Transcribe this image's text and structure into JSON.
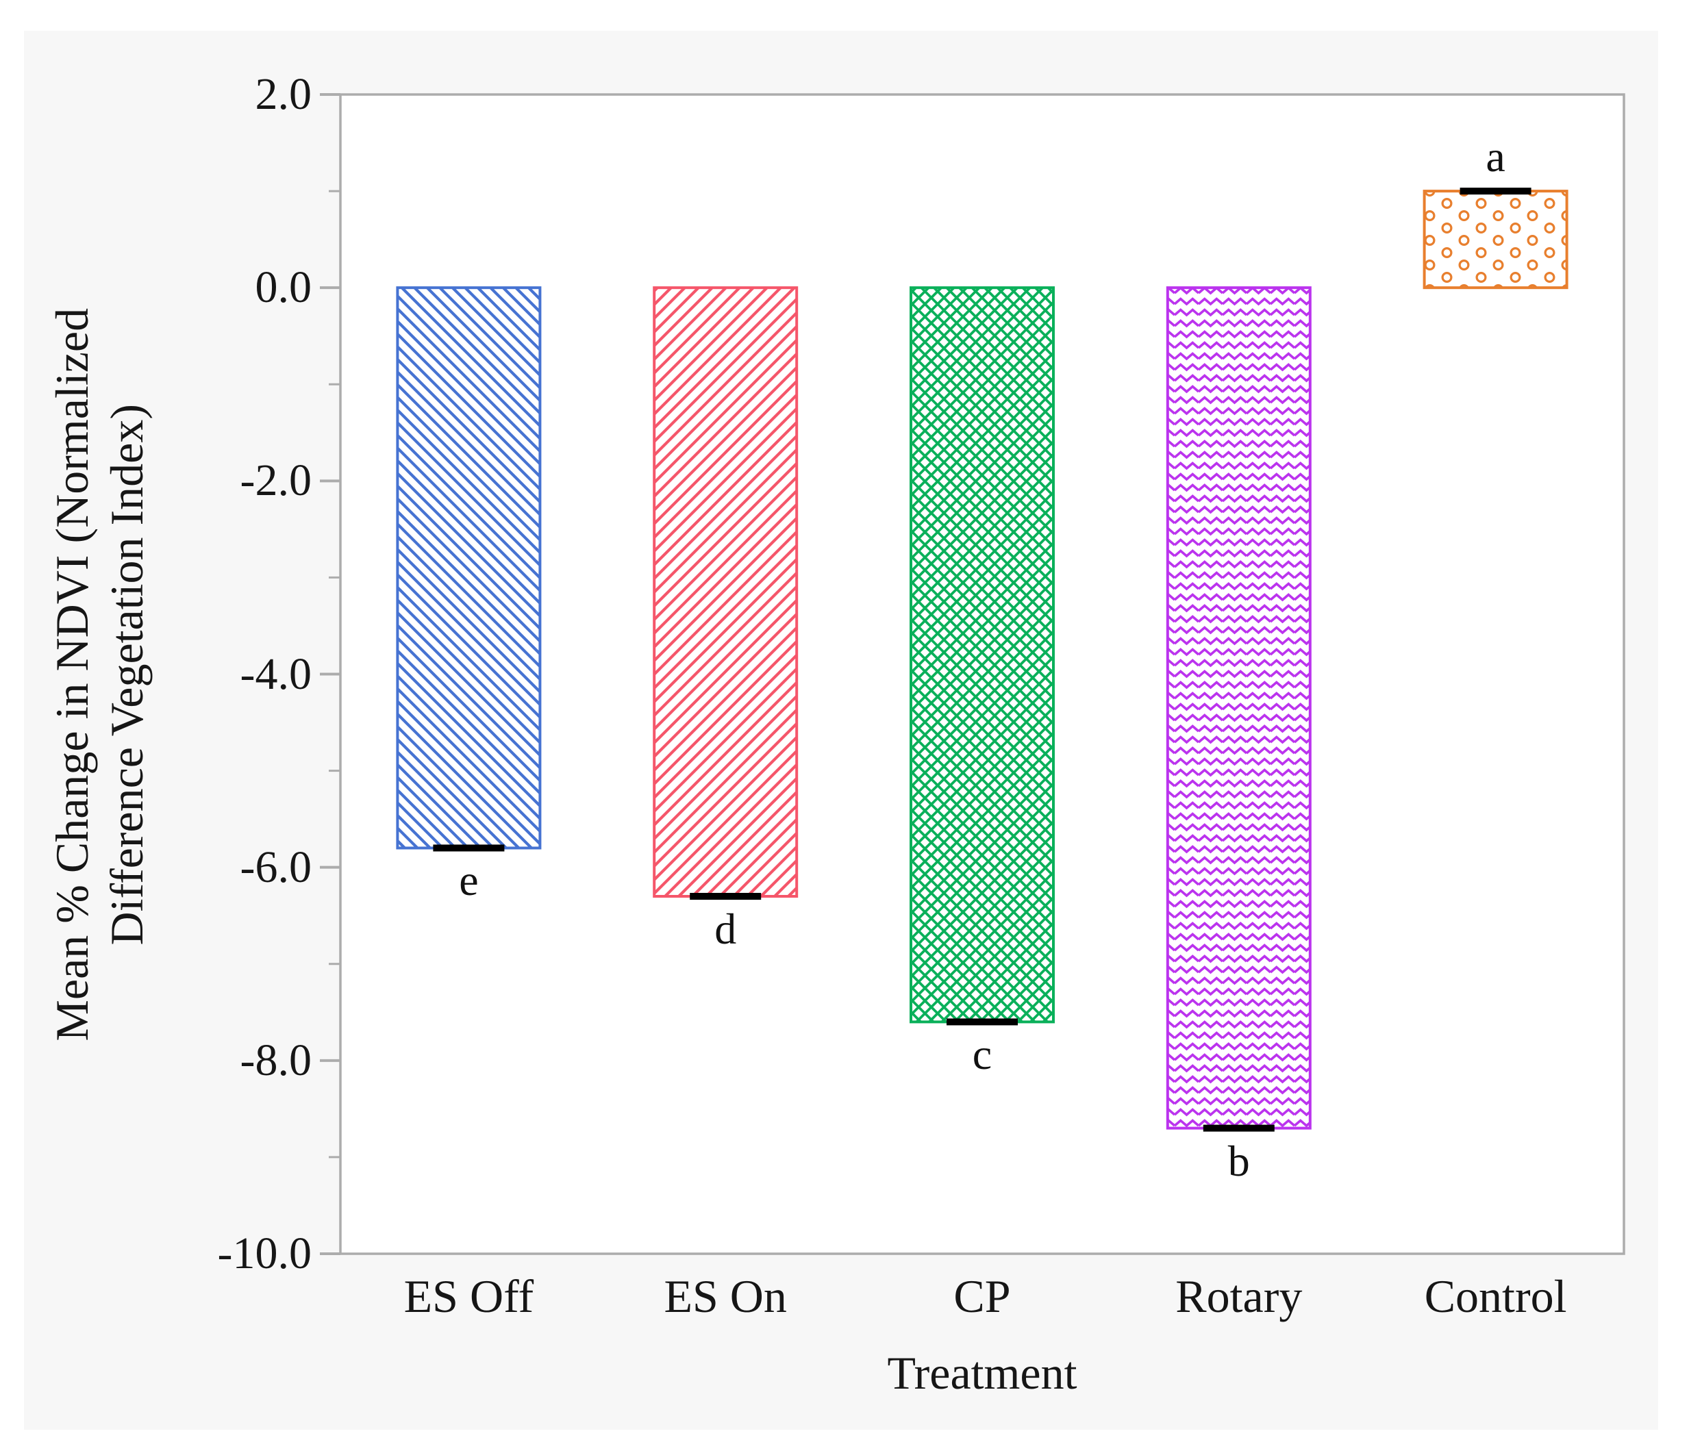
{
  "chart_data": {
    "type": "bar",
    "title": "",
    "xlabel": "Treatment",
    "ylabel": "Mean % Change in NDVI (Normalized Difference Vegetation Index)",
    "ylabel_line1": "Mean % Change in NDVI (Normalized",
    "ylabel_line2": "Difference Vegetation Index)",
    "categories": [
      "ES Off",
      "ES On",
      "CP",
      "Rotary",
      "Control"
    ],
    "values": [
      -5.8,
      -6.3,
      -7.6,
      -8.7,
      1.0
    ],
    "sig_letters": [
      "e",
      "d",
      "c",
      "b",
      "a"
    ],
    "bar_colors": [
      "#4673d2",
      "#f5566a",
      "#0ab05a",
      "#bb33ee",
      "#e87f2e"
    ],
    "bar_patterns": [
      "diag-down",
      "diag-up",
      "crosshatch",
      "zigzag",
      "rings"
    ],
    "ylim": [
      -10.0,
      2.0
    ],
    "y_major_step": 2,
    "y_minor_step": 1,
    "y_tick_values": [
      2.0,
      0.0,
      -2.0,
      -4.0,
      -6.0,
      -8.0,
      -10.0
    ],
    "y_tick_labels": [
      "2.0",
      "0.0",
      "-2.0",
      "-4.0",
      "-6.0",
      "-8.0",
      "-10.0"
    ],
    "error_cap_color": "#000000",
    "frame_color": "#acacac",
    "panel_color": "#f7f7f7",
    "plot_bg_color": "#ffffff",
    "grid": false,
    "legend": false
  }
}
